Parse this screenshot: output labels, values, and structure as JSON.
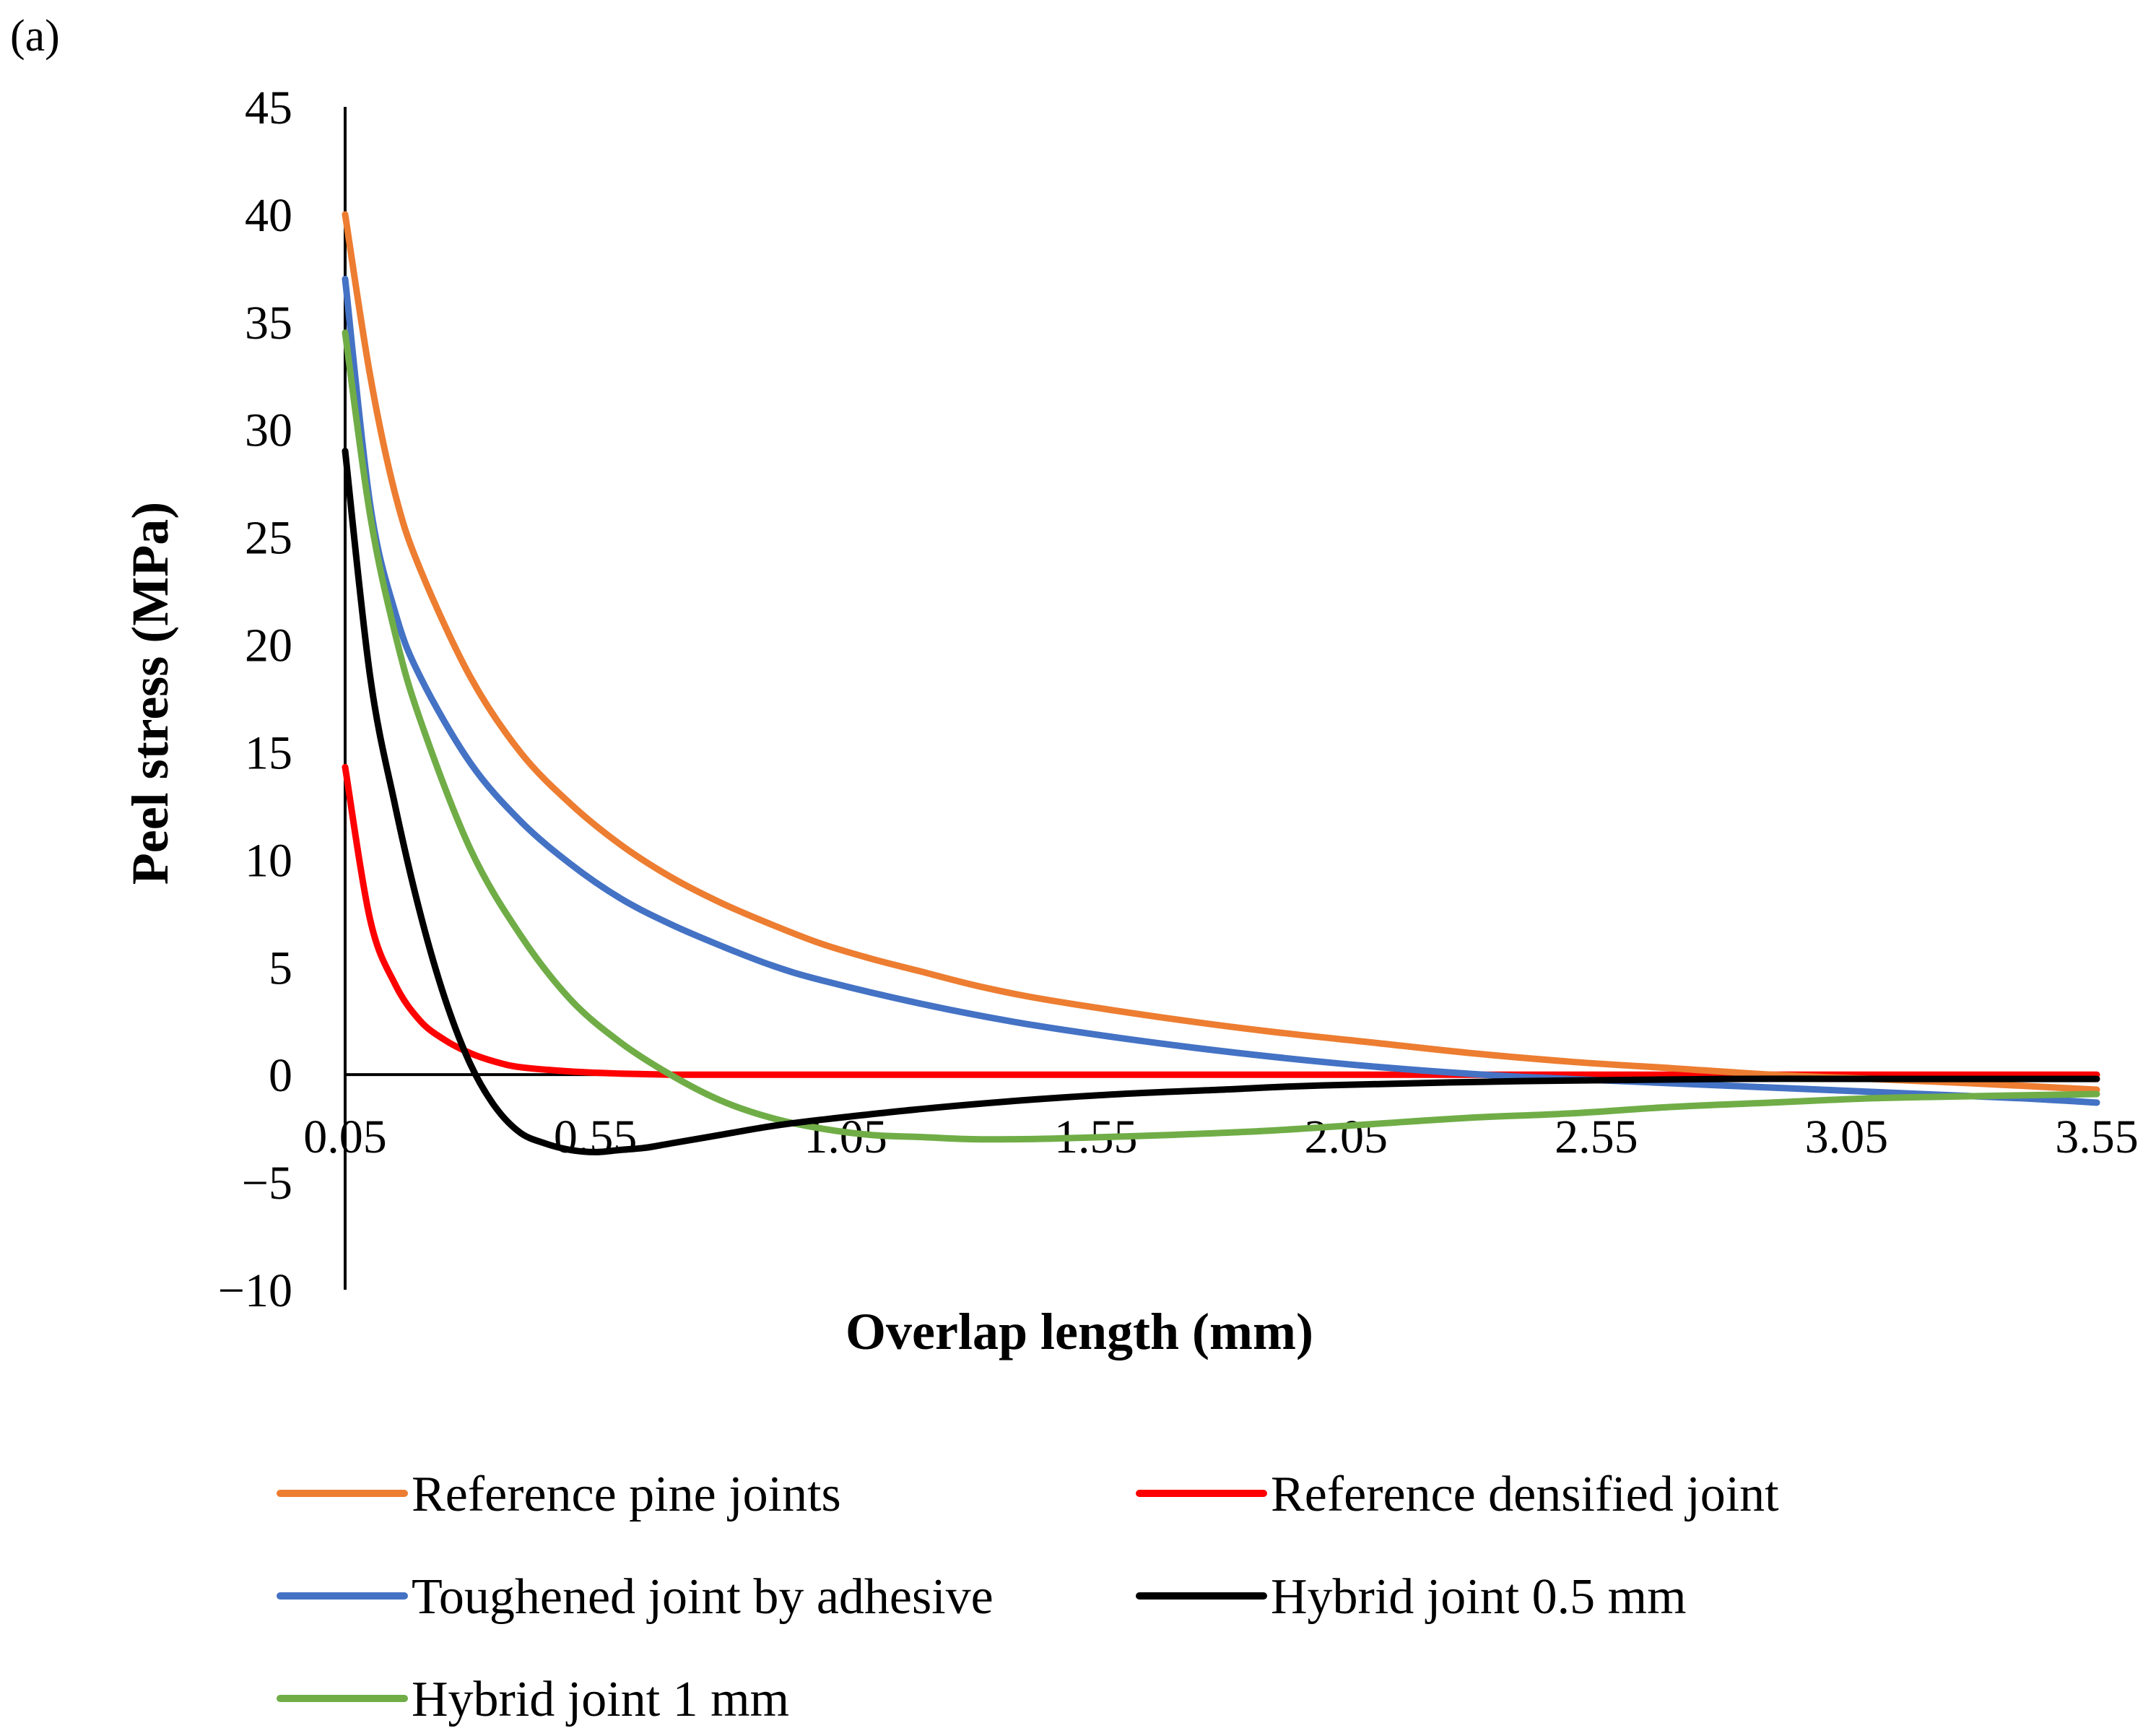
{
  "panel_label": "(a)",
  "chart_data": {
    "type": "line",
    "title": "",
    "xlabel": "Overlap length (mm)",
    "ylabel": "Peel stress (MPa)",
    "xlim": [
      0.05,
      3.55
    ],
    "ylim": [
      -10,
      45
    ],
    "x_ticks": [
      "0.05",
      "0.55",
      "1.05",
      "1.55",
      "2.05",
      "2.55",
      "3.05",
      "3.55"
    ],
    "y_ticks": [
      "45",
      "40",
      "35",
      "30",
      "25",
      "20",
      "15",
      "10",
      "5",
      "0",
      "−5",
      "−10"
    ],
    "grid": false,
    "legend_position": "bottom",
    "series": [
      {
        "name": "Reference pine joints",
        "color": "#ED7D31",
        "x": [
          0.05,
          0.1,
          0.15,
          0.2,
          0.3,
          0.4,
          0.5,
          0.6,
          0.7,
          0.8,
          0.9,
          1.0,
          1.1,
          1.2,
          1.3,
          1.4,
          1.5,
          1.7,
          1.9,
          2.1,
          2.3,
          2.5,
          2.7,
          2.9,
          3.1,
          3.3,
          3.55
        ],
        "y": [
          40,
          32.5,
          27,
          23.5,
          18.5,
          15,
          12.6,
          10.7,
          9.2,
          8.0,
          7.0,
          6.1,
          5.4,
          4.8,
          4.2,
          3.7,
          3.3,
          2.6,
          2.0,
          1.5,
          1.0,
          0.6,
          0.3,
          0.0,
          -0.2,
          -0.4,
          -0.7
        ]
      },
      {
        "name": "Reference densified joint",
        "color": "#FF0000",
        "x": [
          0.05,
          0.1,
          0.15,
          0.2,
          0.25,
          0.3,
          0.35,
          0.4,
          0.5,
          0.6,
          0.7,
          0.8,
          1.0,
          1.5,
          2.0,
          2.5,
          3.0,
          3.55
        ],
        "y": [
          14.3,
          7.2,
          4.2,
          2.5,
          1.6,
          1.0,
          0.6,
          0.35,
          0.15,
          0.05,
          0.0,
          0.0,
          0.0,
          0.0,
          0.0,
          0.0,
          0.0,
          0.0
        ]
      },
      {
        "name": "Toughened joint by adhesive",
        "color": "#4472C4",
        "x": [
          0.05,
          0.1,
          0.15,
          0.2,
          0.3,
          0.4,
          0.5,
          0.6,
          0.7,
          0.8,
          0.9,
          1.0,
          1.2,
          1.4,
          1.6,
          1.8,
          2.0,
          2.2,
          2.4,
          2.6,
          2.8,
          3.0,
          3.2,
          3.4,
          3.55
        ],
        "y": [
          37,
          26.5,
          21.5,
          18.5,
          14.5,
          11.8,
          9.8,
          8.2,
          7.0,
          6.0,
          5.1,
          4.4,
          3.3,
          2.4,
          1.7,
          1.1,
          0.6,
          0.2,
          -0.1,
          -0.3,
          -0.5,
          -0.7,
          -0.9,
          -1.1,
          -1.3
        ]
      },
      {
        "name": "Hybrid joint 0.5 mm",
        "color": "#000000",
        "x": [
          0.05,
          0.1,
          0.15,
          0.2,
          0.25,
          0.3,
          0.35,
          0.4,
          0.45,
          0.5,
          0.55,
          0.6,
          0.65,
          0.7,
          0.8,
          0.9,
          1.0,
          1.2,
          1.4,
          1.6,
          1.8,
          2.0,
          2.4,
          2.8,
          3.2,
          3.55
        ],
        "y": [
          29,
          18.5,
          12.5,
          7.5,
          3.5,
          0.5,
          -1.5,
          -2.7,
          -3.2,
          -3.5,
          -3.6,
          -3.5,
          -3.4,
          -3.2,
          -2.8,
          -2.4,
          -2.1,
          -1.6,
          -1.2,
          -0.9,
          -0.7,
          -0.5,
          -0.3,
          -0.2,
          -0.2,
          -0.2
        ]
      },
      {
        "name": "Hybrid joint 1 mm",
        "color": "#70AD47",
        "x": [
          0.05,
          0.1,
          0.15,
          0.2,
          0.3,
          0.4,
          0.5,
          0.6,
          0.7,
          0.8,
          0.9,
          1.0,
          1.1,
          1.2,
          1.3,
          1.4,
          1.5,
          1.7,
          1.9,
          2.1,
          2.3,
          2.5,
          2.7,
          2.9,
          3.1,
          3.3,
          3.55
        ],
        "y": [
          34.5,
          26,
          20.5,
          16.5,
          10.5,
          6.5,
          3.5,
          1.5,
          0.0,
          -1.2,
          -2.0,
          -2.5,
          -2.8,
          -2.9,
          -3.0,
          -3.0,
          -2.95,
          -2.8,
          -2.6,
          -2.3,
          -2.0,
          -1.8,
          -1.5,
          -1.3,
          -1.1,
          -1.0,
          -0.9
        ]
      }
    ]
  }
}
